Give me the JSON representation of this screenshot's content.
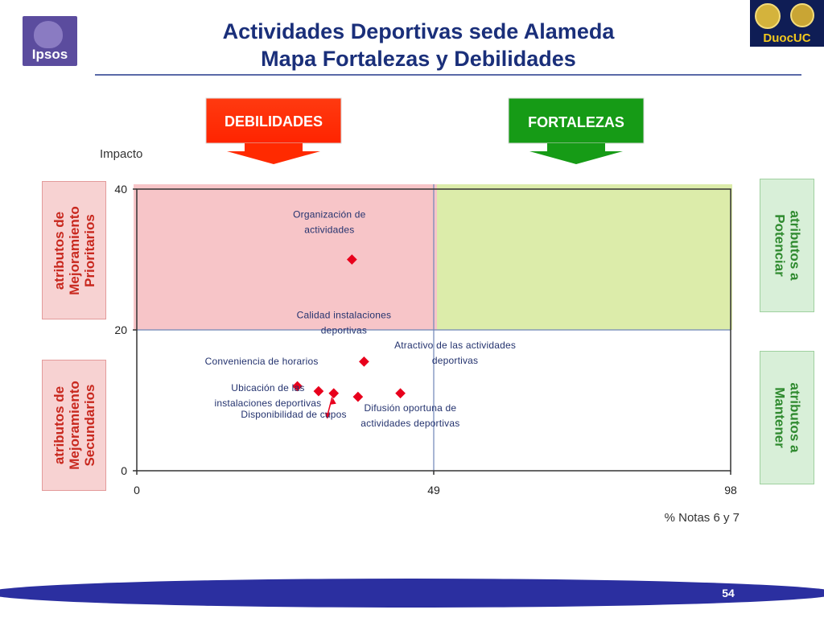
{
  "logos": {
    "ipsos": "Ipsos",
    "duoc": "DuocUC"
  },
  "header": {
    "title_line1": "Actividades Deportivas sede Alameda",
    "title_line2": "Mapa Fortalezas y Debilidades"
  },
  "callouts": {
    "debilidades": "DEBILIDADES",
    "fortalezas": "FORTALEZAS",
    "debilidades_color": "#ff2a00",
    "fortalezas_color": "#169b16"
  },
  "side_labels": {
    "left_top": [
      "atributos de",
      "Mejoramiento",
      "Prioritarios"
    ],
    "left_bottom": [
      "atributos de",
      "Mejoramiento",
      "Secundarios"
    ],
    "right_top": [
      "atributos a",
      "Potenciar"
    ],
    "right_bottom": [
      "atributos a",
      "Mantener"
    ]
  },
  "chart_data": {
    "type": "scatter",
    "ylabel": "Impacto",
    "xlabel": "% Notas 6 y 7",
    "xlim": [
      0,
      98
    ],
    "ylim": [
      0,
      40
    ],
    "x_ticks": [
      0,
      49,
      98
    ],
    "y_ticks": [
      0,
      20,
      40
    ],
    "x_divider": 49,
    "y_divider": 20,
    "quadrant_colors": {
      "top_left": "#f7c5c8",
      "top_right": "#dcecaa",
      "bottom": "#ffffff"
    },
    "marker_color": "#e8001c",
    "points": [
      {
        "label": [
          "Organización de",
          "actividades"
        ],
        "x": 35.5,
        "y": 30
      },
      {
        "label": [
          "Calidad instalaciones",
          "deportivas"
        ],
        "x": 37.5,
        "y": 15.5
      },
      {
        "label": [
          "Conveniencia de horarios"
        ],
        "x": 26.5,
        "y": 12
      },
      {
        "label": [
          "Atractivo de las actividades",
          "deportivas"
        ],
        "x": 43.5,
        "y": 11
      },
      {
        "label": [
          "Ubicación de las",
          "instalaciones deportivas"
        ],
        "x": 30,
        "y": 11.3
      },
      {
        "label": [
          "Disponibilidad de cupos"
        ],
        "x": 32.5,
        "y": 11
      },
      {
        "label": [
          "Difusión oportuna de",
          "actividades deportivas"
        ],
        "x": 36.5,
        "y": 10.5
      }
    ]
  },
  "footer": {
    "page": "54",
    "oval_color": "#2b2fa0"
  }
}
